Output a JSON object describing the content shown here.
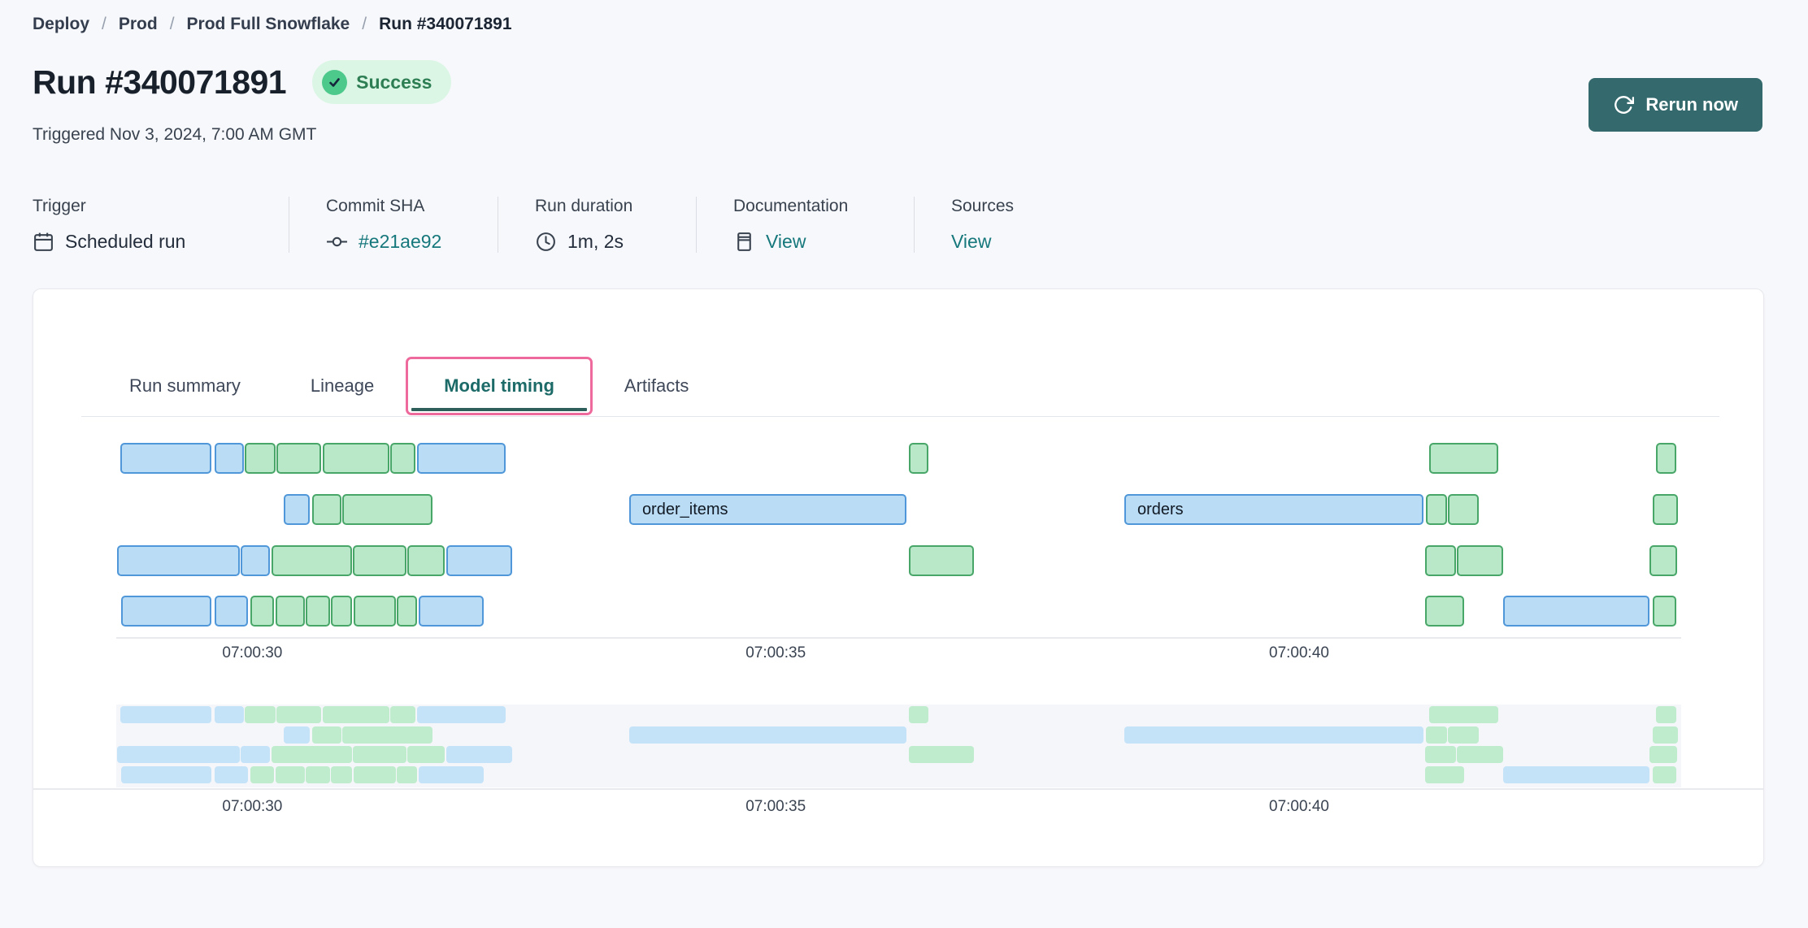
{
  "breadcrumb": {
    "separator": "/",
    "items": [
      "Deploy",
      "Prod",
      "Prod Full Snowflake",
      "Run #340071891"
    ]
  },
  "header": {
    "title": "Run #340071891",
    "status": "Success",
    "triggered": "Triggered Nov 3, 2024, 7:00 AM GMT",
    "rerun_label": "Rerun now"
  },
  "meta": {
    "columns": [
      {
        "label": "Trigger",
        "value": "Scheduled run",
        "icon": "calendar-icon",
        "is_link": false
      },
      {
        "label": "Commit SHA",
        "value": "#e21ae92",
        "icon": "commit-icon",
        "is_link": true
      },
      {
        "label": "Run duration",
        "value": "1m, 2s",
        "icon": "clock-icon",
        "is_link": false
      },
      {
        "label": "Documentation",
        "value": "View",
        "icon": "docs-icon",
        "is_link": true
      },
      {
        "label": "Sources",
        "value": "View",
        "icon": null,
        "is_link": true
      }
    ]
  },
  "tabs": {
    "items": [
      "Run summary",
      "Lineage",
      "Model timing",
      "Artifacts"
    ],
    "active_index": 2
  },
  "chart_data": {
    "type": "gantt",
    "description": "Model timing Gantt chart; bars are model/test executions over time, with a condensed overview strip below. Times are seconds after 07:00:00 GMT.",
    "time_axis": {
      "start_s": 28.7,
      "end_s": 43.65,
      "ticks": [
        {
          "s": 30,
          "label": "07:00:30"
        },
        {
          "s": 35,
          "label": "07:00:35"
        },
        {
          "s": 40,
          "label": "07:00:40"
        }
      ]
    },
    "rows": [
      [
        {
          "s": 28.74,
          "e": 29.61,
          "c": "blue"
        },
        {
          "s": 29.64,
          "e": 29.92,
          "c": "blue"
        },
        {
          "s": 29.93,
          "e": 30.22,
          "c": "green"
        },
        {
          "s": 30.23,
          "e": 30.66,
          "c": "green"
        },
        {
          "s": 30.67,
          "e": 31.31,
          "c": "green"
        },
        {
          "s": 31.32,
          "e": 31.56,
          "c": "green"
        },
        {
          "s": 31.57,
          "e": 32.42,
          "c": "blue"
        },
        {
          "s": 36.27,
          "e": 36.46,
          "c": "green"
        },
        {
          "s": 41.24,
          "e": 41.9,
          "c": "green"
        },
        {
          "s": 43.41,
          "e": 43.6,
          "c": "green"
        }
      ],
      [
        {
          "s": 30.3,
          "e": 30.55,
          "c": "blue"
        },
        {
          "s": 30.57,
          "e": 30.85,
          "c": "green"
        },
        {
          "s": 30.86,
          "e": 31.72,
          "c": "green"
        },
        {
          "s": 33.6,
          "e": 36.25,
          "c": "blue",
          "label": "order_items"
        },
        {
          "s": 38.33,
          "e": 41.19,
          "c": "blue",
          "label": "orders"
        },
        {
          "s": 41.21,
          "e": 41.41,
          "c": "green"
        },
        {
          "s": 41.42,
          "e": 41.72,
          "c": "green"
        },
        {
          "s": 43.38,
          "e": 43.62,
          "c": "green"
        }
      ],
      [
        {
          "s": 28.71,
          "e": 29.88,
          "c": "blue"
        },
        {
          "s": 29.89,
          "e": 30.17,
          "c": "blue"
        },
        {
          "s": 30.18,
          "e": 30.95,
          "c": "green"
        },
        {
          "s": 30.96,
          "e": 31.47,
          "c": "green"
        },
        {
          "s": 31.48,
          "e": 31.84,
          "c": "green"
        },
        {
          "s": 31.85,
          "e": 32.48,
          "c": "blue"
        },
        {
          "s": 36.27,
          "e": 36.89,
          "c": "green"
        },
        {
          "s": 41.2,
          "e": 41.5,
          "c": "green"
        },
        {
          "s": 41.51,
          "e": 41.95,
          "c": "green"
        },
        {
          "s": 43.35,
          "e": 43.61,
          "c": "green"
        }
      ],
      [
        {
          "s": 28.75,
          "e": 29.61,
          "c": "blue"
        },
        {
          "s": 29.64,
          "e": 29.96,
          "c": "blue"
        },
        {
          "s": 29.98,
          "e": 30.21,
          "c": "green"
        },
        {
          "s": 30.22,
          "e": 30.5,
          "c": "green"
        },
        {
          "s": 30.51,
          "e": 30.74,
          "c": "green"
        },
        {
          "s": 30.75,
          "e": 30.95,
          "c": "green"
        },
        {
          "s": 30.97,
          "e": 31.37,
          "c": "green"
        },
        {
          "s": 31.38,
          "e": 31.57,
          "c": "green"
        },
        {
          "s": 31.59,
          "e": 32.21,
          "c": "blue"
        },
        {
          "s": 41.2,
          "e": 41.58,
          "c": "green"
        },
        {
          "s": 41.95,
          "e": 43.35,
          "c": "blue"
        },
        {
          "s": 43.38,
          "e": 43.6,
          "c": "green"
        }
      ]
    ]
  },
  "colors": {
    "page_bg": "#f7f8fb",
    "panel_bg": "#ffffff",
    "panel_border": "#e7e9ee",
    "text_primary": "#1d2635",
    "link_teal": "#16787c",
    "button_teal": "#346a6d",
    "badge_bg": "#dcf6e6",
    "badge_text": "#2e7e54",
    "badge_icon": "#4ec98c",
    "tab_active_text": "#1d6b68",
    "tab_active_ring": "#ee6a9c",
    "tab_active_underline": "#2f5f5b",
    "bar_blue_fill": "#bbdcf5",
    "bar_blue_border": "#4f97d8",
    "bar_green_fill": "#b8e8c7",
    "bar_green_border": "#48a669",
    "mini_blue": "#c5e3f8",
    "mini_green": "#bfeccd",
    "mini_band_bg": "#f4f6f9",
    "axis_line": "#e8eaee"
  }
}
